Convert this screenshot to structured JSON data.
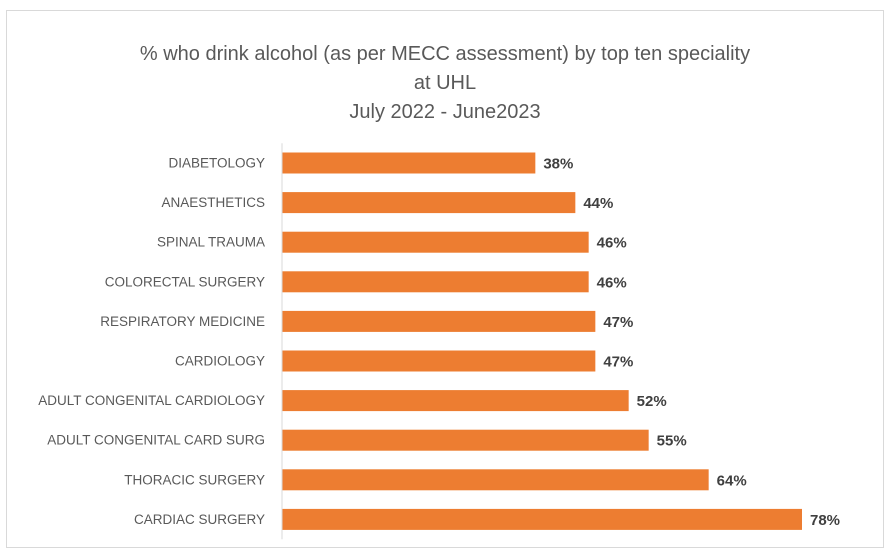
{
  "chart_data": {
    "type": "bar",
    "orientation": "horizontal",
    "title": "% who drink alcohol (as per MECC assessment) by top ten speciality",
    "title_lines": [
      "% who drink alcohol (as per MECC assessment) by top ten speciality",
      "at UHL",
      "July 2022 - June2023"
    ],
    "categories": [
      "DIABETOLOGY",
      "ANAESTHETICS",
      "SPINAL TRAUMA",
      "COLORECTAL SURGERY",
      "RESPIRATORY MEDICINE",
      "CARDIOLOGY",
      "ADULT CONGENITAL CARDIOLOGY",
      "ADULT CONGENITAL CARD SURG",
      "THORACIC SURGERY",
      "CARDIAC SURGERY"
    ],
    "values": [
      38,
      44,
      46,
      46,
      47,
      47,
      52,
      55,
      64,
      78
    ],
    "value_labels": [
      "38%",
      "44%",
      "46%",
      "46%",
      "47%",
      "47%",
      "52%",
      "55%",
      "64%",
      "78%"
    ],
    "xlim": [
      0,
      78
    ],
    "unit": "%",
    "bar_color": "#ed7d31",
    "grid": false,
    "legend": "none"
  }
}
